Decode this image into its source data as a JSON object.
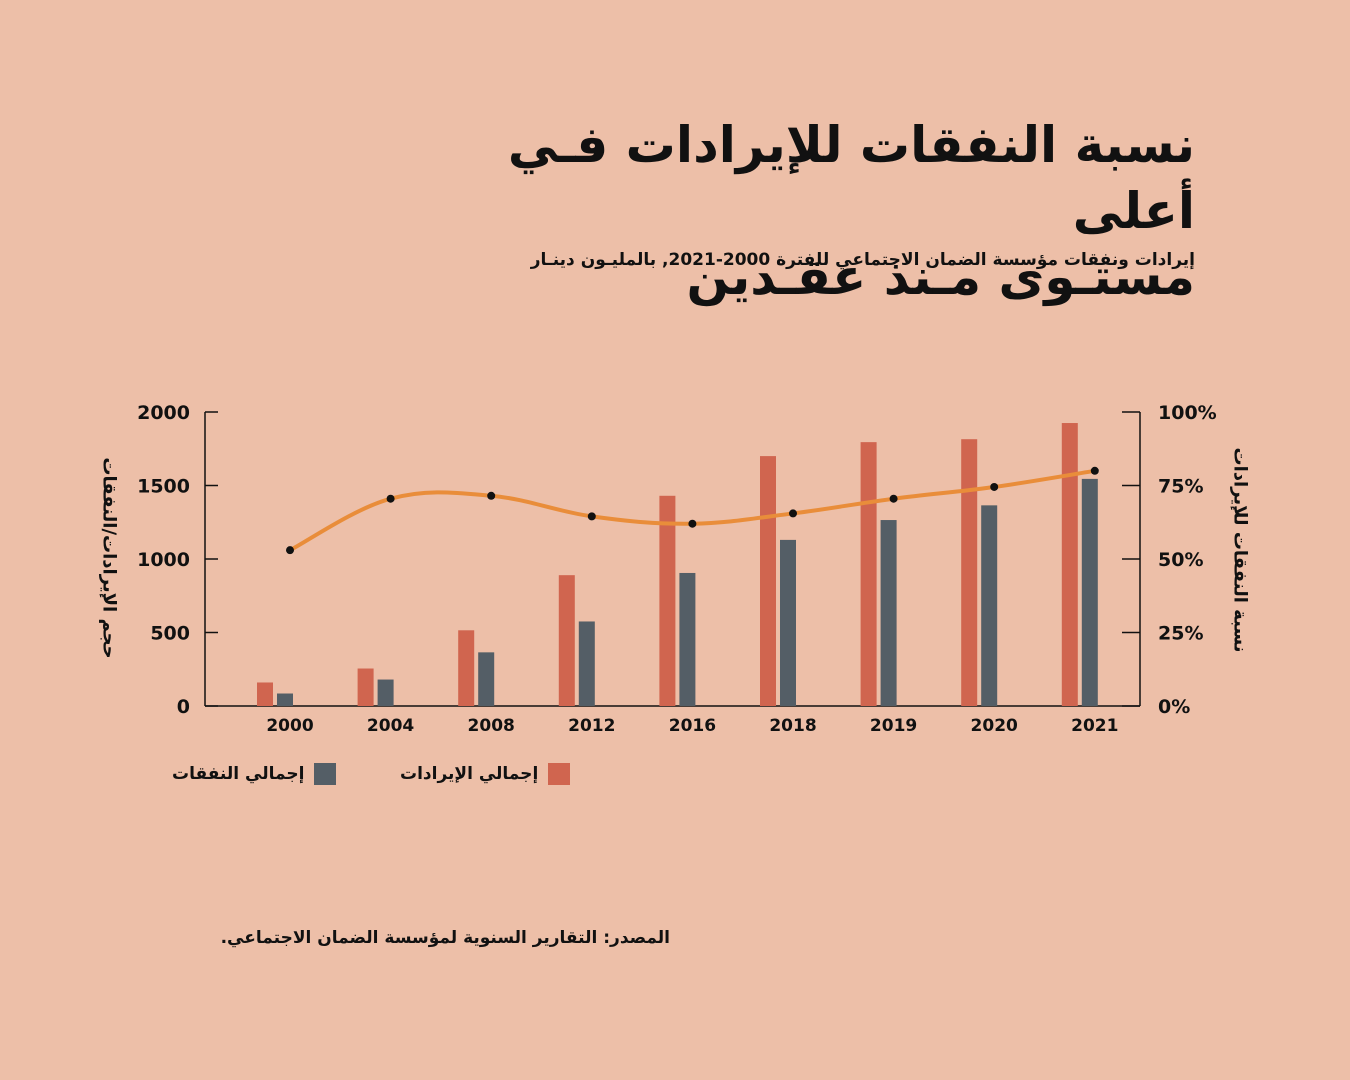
{
  "title_line1": "نسبة النفقات للإيرادات فـي أعلى",
  "title_line2": "مستـوى مـنذ عقـدين",
  "subtitle": "إيرادات ونفقات مؤسسة الضمان الاجتماعي للفترة 2000-2021, بالمليـون دينـار",
  "source": "المصدر: التقارير السنوية لمؤسسة الضمان الاجتماعي.",
  "legend": {
    "revenue": "إجمالي الإيرادات",
    "expenses": "إجمالي النفقات"
  },
  "colors": {
    "background": "#edbfa8",
    "revenue": "#d0654f",
    "expenses": "#545e66",
    "ratio_line": "#e98d3a",
    "ratio_marker": "#111111"
  },
  "chart_data": {
    "type": "bar",
    "categories": [
      "2000",
      "2004",
      "2008",
      "2012",
      "2016",
      "2018",
      "2019",
      "2020",
      "2021"
    ],
    "series": [
      {
        "name": "إجمالي الإيرادات",
        "type": "bar",
        "axis": "left",
        "values": [
          160,
          255,
          515,
          890,
          1430,
          1700,
          1795,
          1815,
          1925
        ]
      },
      {
        "name": "إجمالي النفقات",
        "type": "bar",
        "axis": "left",
        "values": [
          85,
          180,
          365,
          575,
          905,
          1130,
          1265,
          1365,
          1545
        ]
      },
      {
        "name": "نسبة النفقات للإيرادات",
        "type": "line",
        "axis": "right",
        "values": [
          53,
          70.5,
          71.5,
          64.5,
          62,
          65.5,
          70.5,
          74.5,
          80
        ]
      }
    ],
    "ylabel": "حجم الإيرادات/النفقات",
    "y2label": "نسبة النفقات للإيرادات",
    "ylim": [
      0,
      2000
    ],
    "yticks": [
      "0",
      "500",
      "1000",
      "1500",
      "2000"
    ],
    "y2lim": [
      0,
      100
    ],
    "y2ticks": [
      "0%",
      "25%",
      "50%",
      "75%",
      "100%"
    ],
    "grid": false,
    "legend_position": "bottom-left"
  }
}
